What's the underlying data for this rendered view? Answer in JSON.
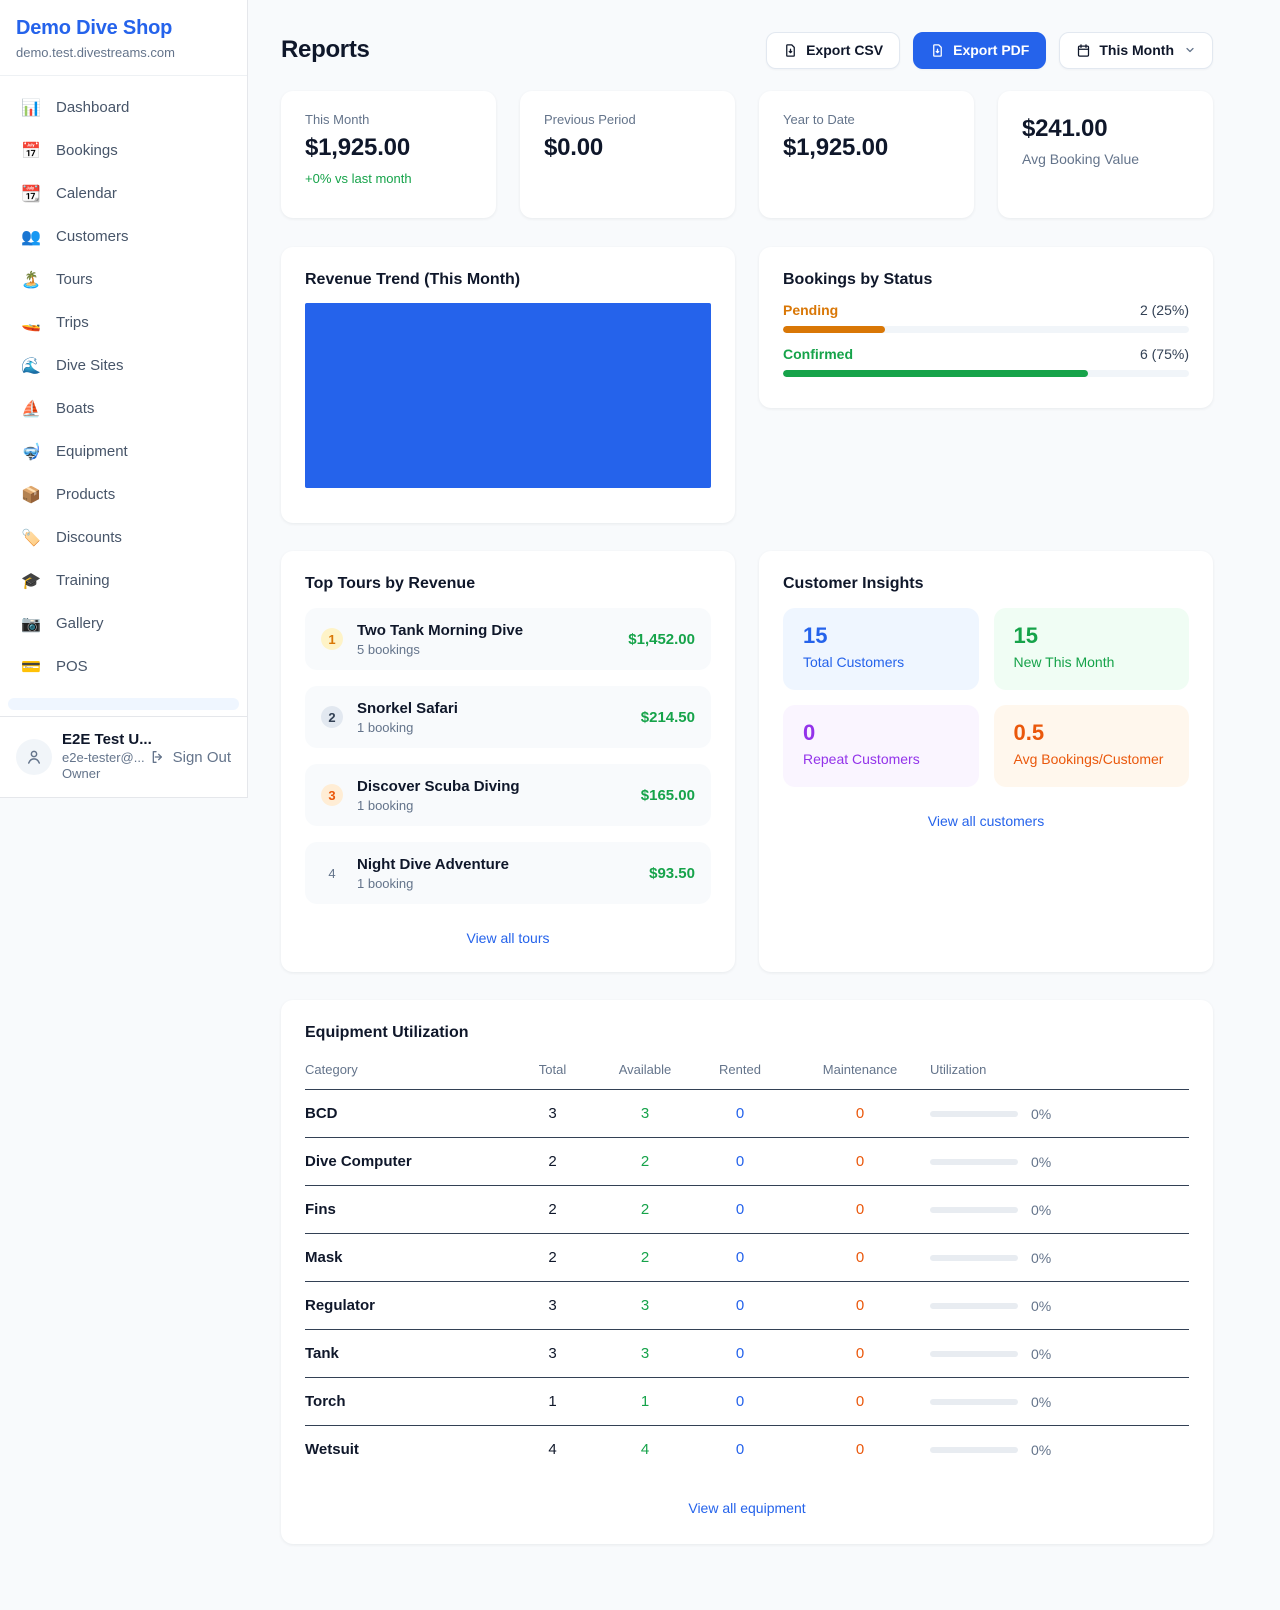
{
  "app": {
    "name": "Demo Dive Shop",
    "domain": "demo.test.divestreams.com"
  },
  "sidebar": {
    "items": [
      {
        "label": "Dashboard",
        "icon": "📊"
      },
      {
        "label": "Bookings",
        "icon": "📅"
      },
      {
        "label": "Calendar",
        "icon": "📆"
      },
      {
        "label": "Customers",
        "icon": "👥"
      },
      {
        "label": "Tours",
        "icon": "🏝️"
      },
      {
        "label": "Trips",
        "icon": "🚤"
      },
      {
        "label": "Dive Sites",
        "icon": "🌊"
      },
      {
        "label": "Boats",
        "icon": "⛵"
      },
      {
        "label": "Equipment",
        "icon": "🤿"
      },
      {
        "label": "Products",
        "icon": "📦"
      },
      {
        "label": "Discounts",
        "icon": "🏷️"
      },
      {
        "label": "Training",
        "icon": "🎓"
      },
      {
        "label": "Gallery",
        "icon": "📷"
      },
      {
        "label": "POS",
        "icon": "💳"
      }
    ],
    "user": {
      "name": "E2E Test U...",
      "email": "e2e-tester@...",
      "role": "Owner",
      "sign_out": "Sign Out"
    }
  },
  "header": {
    "title": "Reports",
    "export_csv_label": "Export CSV",
    "export_pdf_label": "Export PDF",
    "period_label": "This Month"
  },
  "stats": [
    {
      "label": "This Month",
      "value": "$1,925.00",
      "delta": "+0% vs last month"
    },
    {
      "label": "Previous Period",
      "value": "$0.00"
    },
    {
      "label": "Year to Date",
      "value": "$1,925.00"
    },
    {
      "label": "Avg Booking Value",
      "value": "$241.00"
    }
  ],
  "revenue_trend": {
    "title": "Revenue Trend (This Month)"
  },
  "bookings_by_status": {
    "title": "Bookings by Status",
    "rows": [
      {
        "label": "Pending",
        "count": "2 (25%)",
        "pct": 25
      },
      {
        "label": "Confirmed",
        "count": "6 (75%)",
        "pct": 75
      }
    ]
  },
  "top_tours": {
    "title": "Top Tours by Revenue",
    "view_all": "View all tours",
    "items": [
      {
        "rank": "1",
        "name": "Two Tank Morning Dive",
        "bookings": "5 bookings",
        "revenue": "$1,452.00"
      },
      {
        "rank": "2",
        "name": "Snorkel Safari",
        "bookings": "1 booking",
        "revenue": "$214.50"
      },
      {
        "rank": "3",
        "name": "Discover Scuba Diving",
        "bookings": "1 booking",
        "revenue": "$165.00"
      },
      {
        "rank": "4",
        "name": "Night Dive Adventure",
        "bookings": "1 booking",
        "revenue": "$93.50"
      }
    ]
  },
  "customer_insights": {
    "title": "Customer Insights",
    "view_all": "View all customers",
    "tiles": [
      {
        "value": "15",
        "label": "Total Customers"
      },
      {
        "value": "15",
        "label": "New This Month"
      },
      {
        "value": "0",
        "label": "Repeat Customers"
      },
      {
        "value": "0.5",
        "label": "Avg Bookings/Customer"
      }
    ]
  },
  "equipment": {
    "title": "Equipment Utilization",
    "view_all": "View all equipment",
    "columns": [
      "Category",
      "Total",
      "Available",
      "Rented",
      "Maintenance",
      "Utilization"
    ],
    "rows": [
      {
        "category": "BCD",
        "total": "3",
        "available": "3",
        "rented": "0",
        "maintenance": "0",
        "utilization": "0%",
        "pct": 0
      },
      {
        "category": "Dive Computer",
        "total": "2",
        "available": "2",
        "rented": "0",
        "maintenance": "0",
        "utilization": "0%",
        "pct": 0
      },
      {
        "category": "Fins",
        "total": "2",
        "available": "2",
        "rented": "0",
        "maintenance": "0",
        "utilization": "0%",
        "pct": 0
      },
      {
        "category": "Mask",
        "total": "2",
        "available": "2",
        "rented": "0",
        "maintenance": "0",
        "utilization": "0%",
        "pct": 0
      },
      {
        "category": "Regulator",
        "total": "3",
        "available": "3",
        "rented": "0",
        "maintenance": "0",
        "utilization": "0%",
        "pct": 0
      },
      {
        "category": "Tank",
        "total": "3",
        "available": "3",
        "rented": "0",
        "maintenance": "0",
        "utilization": "0%",
        "pct": 0
      },
      {
        "category": "Torch",
        "total": "1",
        "available": "1",
        "rented": "0",
        "maintenance": "0",
        "utilization": "0%",
        "pct": 0
      },
      {
        "category": "Wetsuit",
        "total": "4",
        "available": "4",
        "rented": "0",
        "maintenance": "0",
        "utilization": "0%",
        "pct": 0
      }
    ]
  },
  "colors": {
    "accent_blue": "#2563eb",
    "green": "#16a34a",
    "pending_orange": "#d97706",
    "maintenance_orange": "#ea580c",
    "purple": "#9333ea",
    "page_bg": "#f8fafc"
  }
}
